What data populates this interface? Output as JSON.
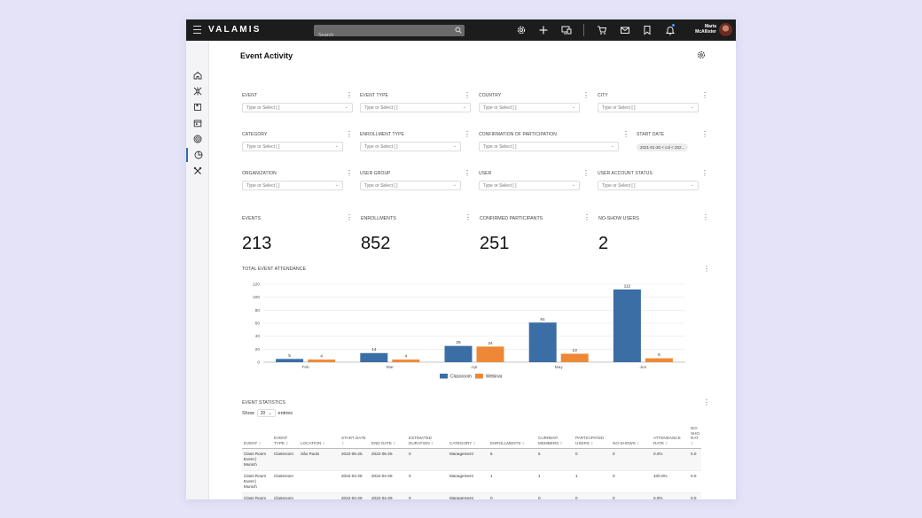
{
  "app": {
    "brand": "VALAMIS",
    "search_placeholder": "Search",
    "user_name_line1": "Maria",
    "user_name_line2": "McAllister"
  },
  "page": {
    "title": "Event Activity"
  },
  "filters": [
    {
      "label": "EVENT",
      "placeholder": "Type or Select [ ]"
    },
    {
      "label": "EVENT TYPE",
      "placeholder": "Type or Select [ ]"
    },
    {
      "label": "COUNTRY",
      "placeholder": "Type or Select [ ]"
    },
    {
      "label": "CITY",
      "placeholder": "Type or Select [ ]"
    },
    {
      "label": "CATEGORY",
      "placeholder": "Type or Select [ ]"
    },
    {
      "label": "ENROLLMENT TYPE",
      "placeholder": "Type or Select [ ]"
    },
    {
      "label": "CONFIRMATION OF PARTICIPATION",
      "placeholder": "Type or Select [ ]"
    },
    {
      "label": "START DATE",
      "chip": "2021-01-30 < col < 202..."
    },
    {
      "label": "ORGANIZATION",
      "placeholder": "Type or Select [ ]"
    },
    {
      "label": "USER GROUP",
      "placeholder": "Type or Select [ ]"
    },
    {
      "label": "USER",
      "placeholder": "Type or Select [ ]"
    },
    {
      "label": "USER ACCOUNT STATUS",
      "placeholder": "Type or Select [ ]"
    }
  ],
  "kpis": [
    {
      "label": "EVENTS",
      "value": "213"
    },
    {
      "label": "ENROLLMENTS",
      "value": "852"
    },
    {
      "label": "CONFIRMED PARTICIPANTS",
      "value": "251"
    },
    {
      "label": "NO-SHOW USERS",
      "value": "2"
    }
  ],
  "chart_section_label": "TOTAL EVENT ATTENDANCE",
  "chart_data": {
    "type": "bar",
    "categories": [
      "Feb",
      "Mar",
      "Apr",
      "May",
      "Jun"
    ],
    "series": [
      {
        "name": "Classroom",
        "values": [
          5,
          14,
          25,
          61,
          112
        ],
        "color": "#3a6ea5"
      },
      {
        "name": "Webinar",
        "values": [
          4,
          4,
          24,
          13,
          6
        ],
        "color": "#ed8936"
      }
    ],
    "ylim": [
      0,
      120
    ],
    "yticks": [
      0,
      20,
      40,
      60,
      80,
      100,
      120
    ],
    "legend_position": "bottom-center",
    "grid": true
  },
  "stats": {
    "section_label": "EVENT STATISTICS",
    "show_label": "Show",
    "entries_value": "20",
    "entries_label": "entries",
    "columns": [
      "EVENT",
      "EVENT TYPE",
      "LOCATION",
      "START DATE",
      "END DATE",
      "ESTIMATED DURATION",
      "CATEGORY",
      "ENROLLMENTS",
      "CURRENT MEMBERS",
      "PARTICIPATED USERS",
      "NO-SHOWS",
      "ATTENDANCE RATE",
      "NO-SHO RAT"
    ],
    "rows": [
      [
        "Class Room Event | Munich",
        "Classroom",
        "São Paulo",
        "2022-05-25",
        "2022-05-25",
        "0",
        "Management",
        "5",
        "5",
        "0",
        "0",
        "0.0%",
        "0.0"
      ],
      [
        "Class Room Event | Munich",
        "Classroom",
        "",
        "2022-04-28",
        "2022-04-28",
        "0",
        "Management",
        "1",
        "1",
        "1",
        "0",
        "100.0%",
        "0.0"
      ],
      [
        "Class Room Event | Munich",
        "Classroom",
        "",
        "2022-04-29",
        "2022-04-29",
        "0",
        "Management",
        "0",
        "0",
        "0",
        "0",
        "0.0%",
        "0.0"
      ]
    ]
  }
}
